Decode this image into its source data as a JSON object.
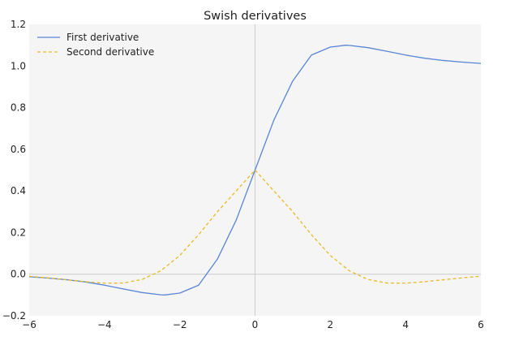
{
  "chart_data": {
    "type": "line",
    "title": "Swish derivatives",
    "xlabel": "",
    "ylabel": "",
    "xlim": [
      -6,
      6
    ],
    "ylim": [
      -0.2,
      1.2
    ],
    "xticks": [
      -6,
      -4,
      -2,
      0,
      2,
      4,
      6
    ],
    "xtick_labels": [
      "−6",
      "−4",
      "−2",
      "0",
      "2",
      "4",
      "6"
    ],
    "yticks": [
      -0.2,
      0.0,
      0.2,
      0.4,
      0.6,
      0.8,
      1.0,
      1.2
    ],
    "ytick_labels": [
      "−0.2",
      "0.0",
      "0.2",
      "0.4",
      "0.6",
      "0.8",
      "1.0",
      "1.2"
    ],
    "grid": false,
    "legend_position": "top-left",
    "background_color": "#f5f5f5",
    "axis_line_color": "#cccccc",
    "series": [
      {
        "name": "First derivative",
        "color": "#5a85d6",
        "style": "solid",
        "x": [
          -6,
          -5.5,
          -5,
          -4.5,
          -4,
          -3.5,
          -3,
          -2.5,
          -2.4,
          -2,
          -1.5,
          -1,
          -0.5,
          0,
          0.5,
          1,
          1.5,
          2,
          2.4,
          2.5,
          3,
          3.5,
          4,
          4.5,
          5,
          5.5,
          6
        ],
        "y": [
          -0.0124,
          -0.0187,
          -0.0266,
          -0.0374,
          -0.0526,
          -0.0708,
          -0.0881,
          -0.099,
          -0.0998,
          -0.0908,
          -0.0529,
          0.0723,
          0.26,
          0.5,
          0.74,
          0.9277,
          1.0529,
          1.0908,
          1.0998,
          1.099,
          1.0881,
          1.0708,
          1.0526,
          1.0374,
          1.0266,
          1.0187,
          1.0124
        ]
      },
      {
        "name": "Second derivative",
        "color": "#e8b92a",
        "style": "dashed",
        "x": [
          -6,
          -5.5,
          -5,
          -4.5,
          -4,
          -3.5,
          -3,
          -2.5,
          -2,
          -1.5,
          -1,
          -0.5,
          0,
          0.5,
          1,
          1.5,
          2,
          2.5,
          3,
          3.5,
          4,
          4.5,
          5,
          5.5,
          6
        ],
        "y": [
          -0.0099,
          -0.0177,
          -0.0267,
          -0.0362,
          -0.0431,
          -0.0423,
          -0.0252,
          0.0168,
          0.09,
          0.1895,
          0.3,
          0.4,
          0.5,
          0.4,
          0.3,
          0.1895,
          0.09,
          0.0168,
          -0.0252,
          -0.0423,
          -0.0431,
          -0.0362,
          -0.0267,
          -0.0177,
          -0.0099
        ]
      }
    ]
  }
}
